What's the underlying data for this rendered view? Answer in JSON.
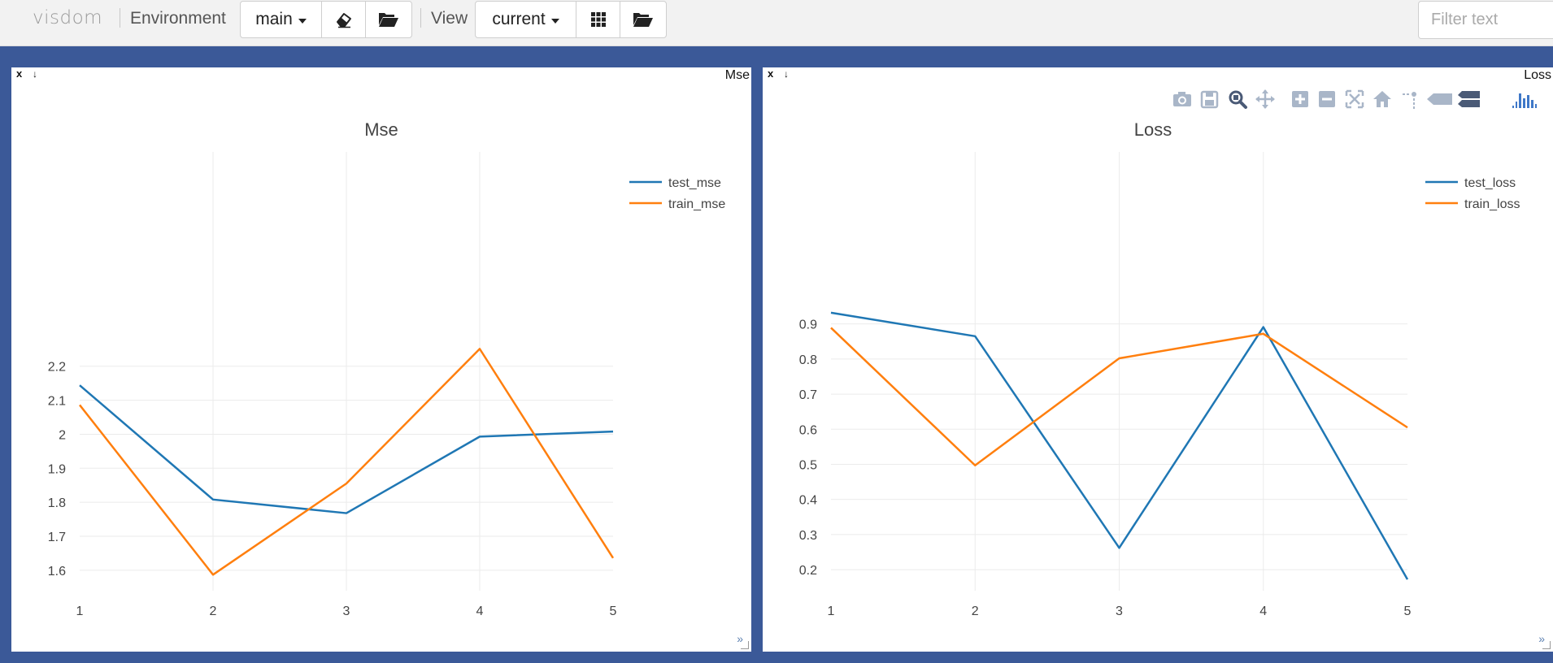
{
  "navbar": {
    "brand": "visdom",
    "environment_label": "Environment",
    "environment_value": "main",
    "view_label": "View",
    "view_value": "current",
    "filter_placeholder": "Filter text",
    "icons": [
      "eraser-icon",
      "folder-open-icon",
      "grid-icon",
      "folder-open-icon"
    ]
  },
  "panes": [
    {
      "name": "Mse",
      "close_label": "x",
      "download_label": "↓",
      "more_label": "»",
      "show_modebar": false,
      "chart_data": {
        "type": "line",
        "title": "Mse",
        "x": [
          1,
          2,
          3,
          4,
          5
        ],
        "xticks": [
          "1",
          "2",
          "3",
          "4",
          "5"
        ],
        "yticks": [
          1.6,
          1.7,
          1.8,
          1.9,
          2,
          2.1,
          2.2
        ],
        "ytick_labels": [
          "1.6",
          "1.7",
          "1.8",
          "1.9",
          "2",
          "2.1",
          "2.2"
        ],
        "ylim": [
          1.54,
          2.83
        ],
        "series": [
          {
            "name": "test_mse",
            "color": "#1f77b4",
            "values": [
              2.144,
              1.808,
              1.768,
              1.993,
              2.008
            ]
          },
          {
            "name": "train_mse",
            "color": "#ff7f0e",
            "values": [
              2.086,
              1.587,
              1.855,
              2.251,
              1.636
            ]
          }
        ],
        "grid": true,
        "legend": "top-right"
      }
    },
    {
      "name": "Loss",
      "close_label": "x",
      "download_label": "↓",
      "more_label": "»",
      "show_modebar": true,
      "modebar_icons": [
        "camera-icon",
        "save-icon",
        "zoom-icon",
        "pan-icon",
        "zoom-in-icon",
        "zoom-out-icon",
        "autoscale-icon",
        "home-icon",
        "spike-lines-icon",
        "hover-closest-icon",
        "hover-compare-icon",
        "plotly-logo-icon"
      ],
      "chart_data": {
        "type": "line",
        "title": "Loss",
        "x": [
          1,
          2,
          3,
          4,
          5
        ],
        "xticks": [
          "1",
          "2",
          "3",
          "4",
          "5"
        ],
        "yticks": [
          0.2,
          0.3,
          0.4,
          0.5,
          0.6,
          0.7,
          0.8,
          0.9
        ],
        "ytick_labels": [
          "0.2",
          "0.3",
          "0.4",
          "0.5",
          "0.6",
          "0.7",
          "0.8",
          "0.9"
        ],
        "ylim": [
          0.14,
          1.39
        ],
        "series": [
          {
            "name": "test_loss",
            "color": "#1f77b4",
            "values": [
              0.932,
              0.865,
              0.262,
              0.891,
              0.172
            ]
          },
          {
            "name": "train_loss",
            "color": "#ff7f0e",
            "values": [
              0.889,
              0.497,
              0.802,
              0.872,
              0.605
            ]
          }
        ],
        "grid": true,
        "legend": "top-right"
      }
    }
  ]
}
